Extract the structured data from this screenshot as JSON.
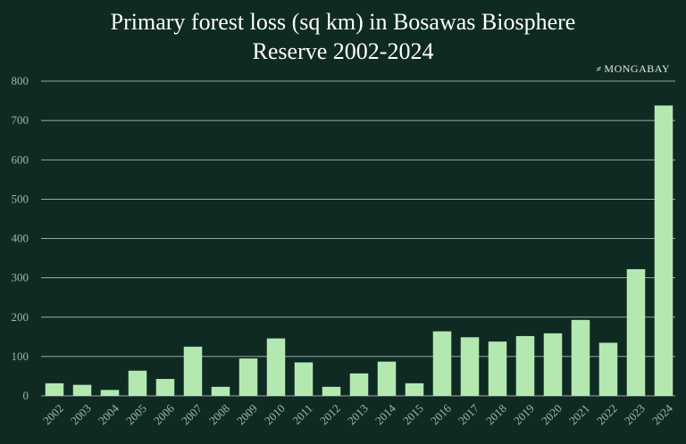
{
  "chart_data": {
    "type": "bar",
    "title_lines": [
      "Primary forest loss (sq km) in Bosawas Biosphere",
      "Reserve 2002-2024"
    ],
    "categories": [
      "2002",
      "2003",
      "2004",
      "2005",
      "2006",
      "2007",
      "2008",
      "2009",
      "2010",
      "2011",
      "2012",
      "2013",
      "2014",
      "2015",
      "2016",
      "2017",
      "2018",
      "2019",
      "2020",
      "2021",
      "2022",
      "2023",
      "2024"
    ],
    "values": [
      32,
      28,
      15,
      64,
      43,
      125,
      23,
      95,
      146,
      85,
      23,
      57,
      87,
      32,
      164,
      149,
      138,
      152,
      159,
      193,
      135,
      322,
      738
    ],
    "ylim": [
      0,
      800
    ],
    "yticks": [
      0,
      100,
      200,
      300,
      400,
      500,
      600,
      700,
      800
    ],
    "xlabel": "",
    "ylabel": "",
    "grid": true,
    "colors": {
      "background": "#0f2a22",
      "bar": "#b3e9b0",
      "grid": "#c9d2cd",
      "text": "#ffffff",
      "tick": "#a7b3ad"
    }
  },
  "brand": {
    "label": "MONGABAY",
    "icon": "gecko-icon"
  }
}
